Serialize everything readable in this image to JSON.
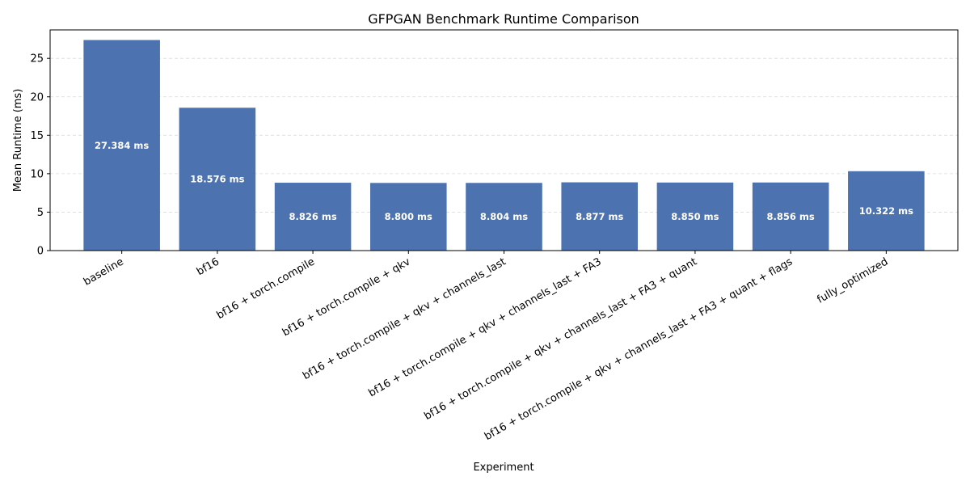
{
  "chart_data": {
    "type": "bar",
    "title": "GFPGAN Benchmark Runtime Comparison",
    "xlabel": "Experiment",
    "ylabel": "Mean Runtime (ms)",
    "categories": [
      "baseline",
      "bf16",
      "bf16 + torch.compile",
      "bf16 + torch.compile + qkv",
      "bf16 + torch.compile + qkv + channels_last",
      "bf16 + torch.compile + qkv + channels_last + FA3",
      "bf16 + torch.compile + qkv + channels_last + FA3 + quant",
      "bf16 + torch.compile + qkv + channels_last + FA3 + quant + flags",
      "fully_optimized"
    ],
    "values": [
      27.384,
      18.576,
      8.826,
      8.8,
      8.804,
      8.877,
      8.85,
      8.856,
      10.322
    ],
    "data_labels": [
      "27.384 ms",
      "18.576 ms",
      "8.826 ms",
      "8.800 ms",
      "8.804 ms",
      "8.877 ms",
      "8.850 ms",
      "8.856 ms",
      "10.322 ms"
    ],
    "yticks": [
      0,
      5,
      10,
      15,
      20,
      25
    ],
    "ylim": [
      0,
      28.7
    ],
    "grid": true,
    "bar_color": "#4c72b0"
  }
}
